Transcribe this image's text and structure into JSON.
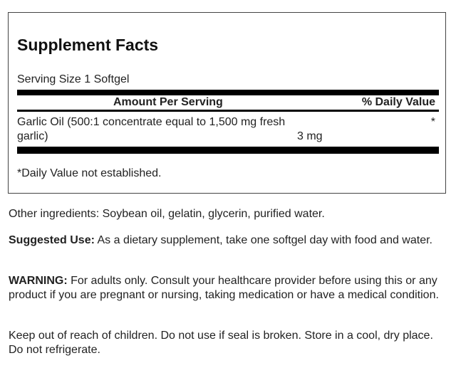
{
  "facts": {
    "title": "Supplement Facts",
    "serving_size": "Serving Size 1 Softgel",
    "header_amount": "Amount Per Serving",
    "header_dv": "% Daily Value",
    "rows": [
      {
        "name_line1": "Garlic Oil (500:1 concentrate equal to 1,500 mg fresh",
        "name_line2": "garlic)",
        "amount": "3 mg",
        "dv": "*"
      }
    ],
    "footnote": "*Daily Value not established."
  },
  "other_ingredients": "Other ingredients: Soybean oil, gelatin, glycerin, purified water.",
  "suggested_use": {
    "label": "Suggested Use:",
    "text": " As a dietary supplement, take one softgel day with food and water."
  },
  "warning": {
    "label": "WARNING:",
    "text": " For adults only. Consult your healthcare provider before using this or any product if you are pregnant or nursing, taking medication or have a medical condition."
  },
  "storage": "Keep out of reach of children. Do not use if seal is broken. Store in a cool, dry place. Do not refrigerate."
}
